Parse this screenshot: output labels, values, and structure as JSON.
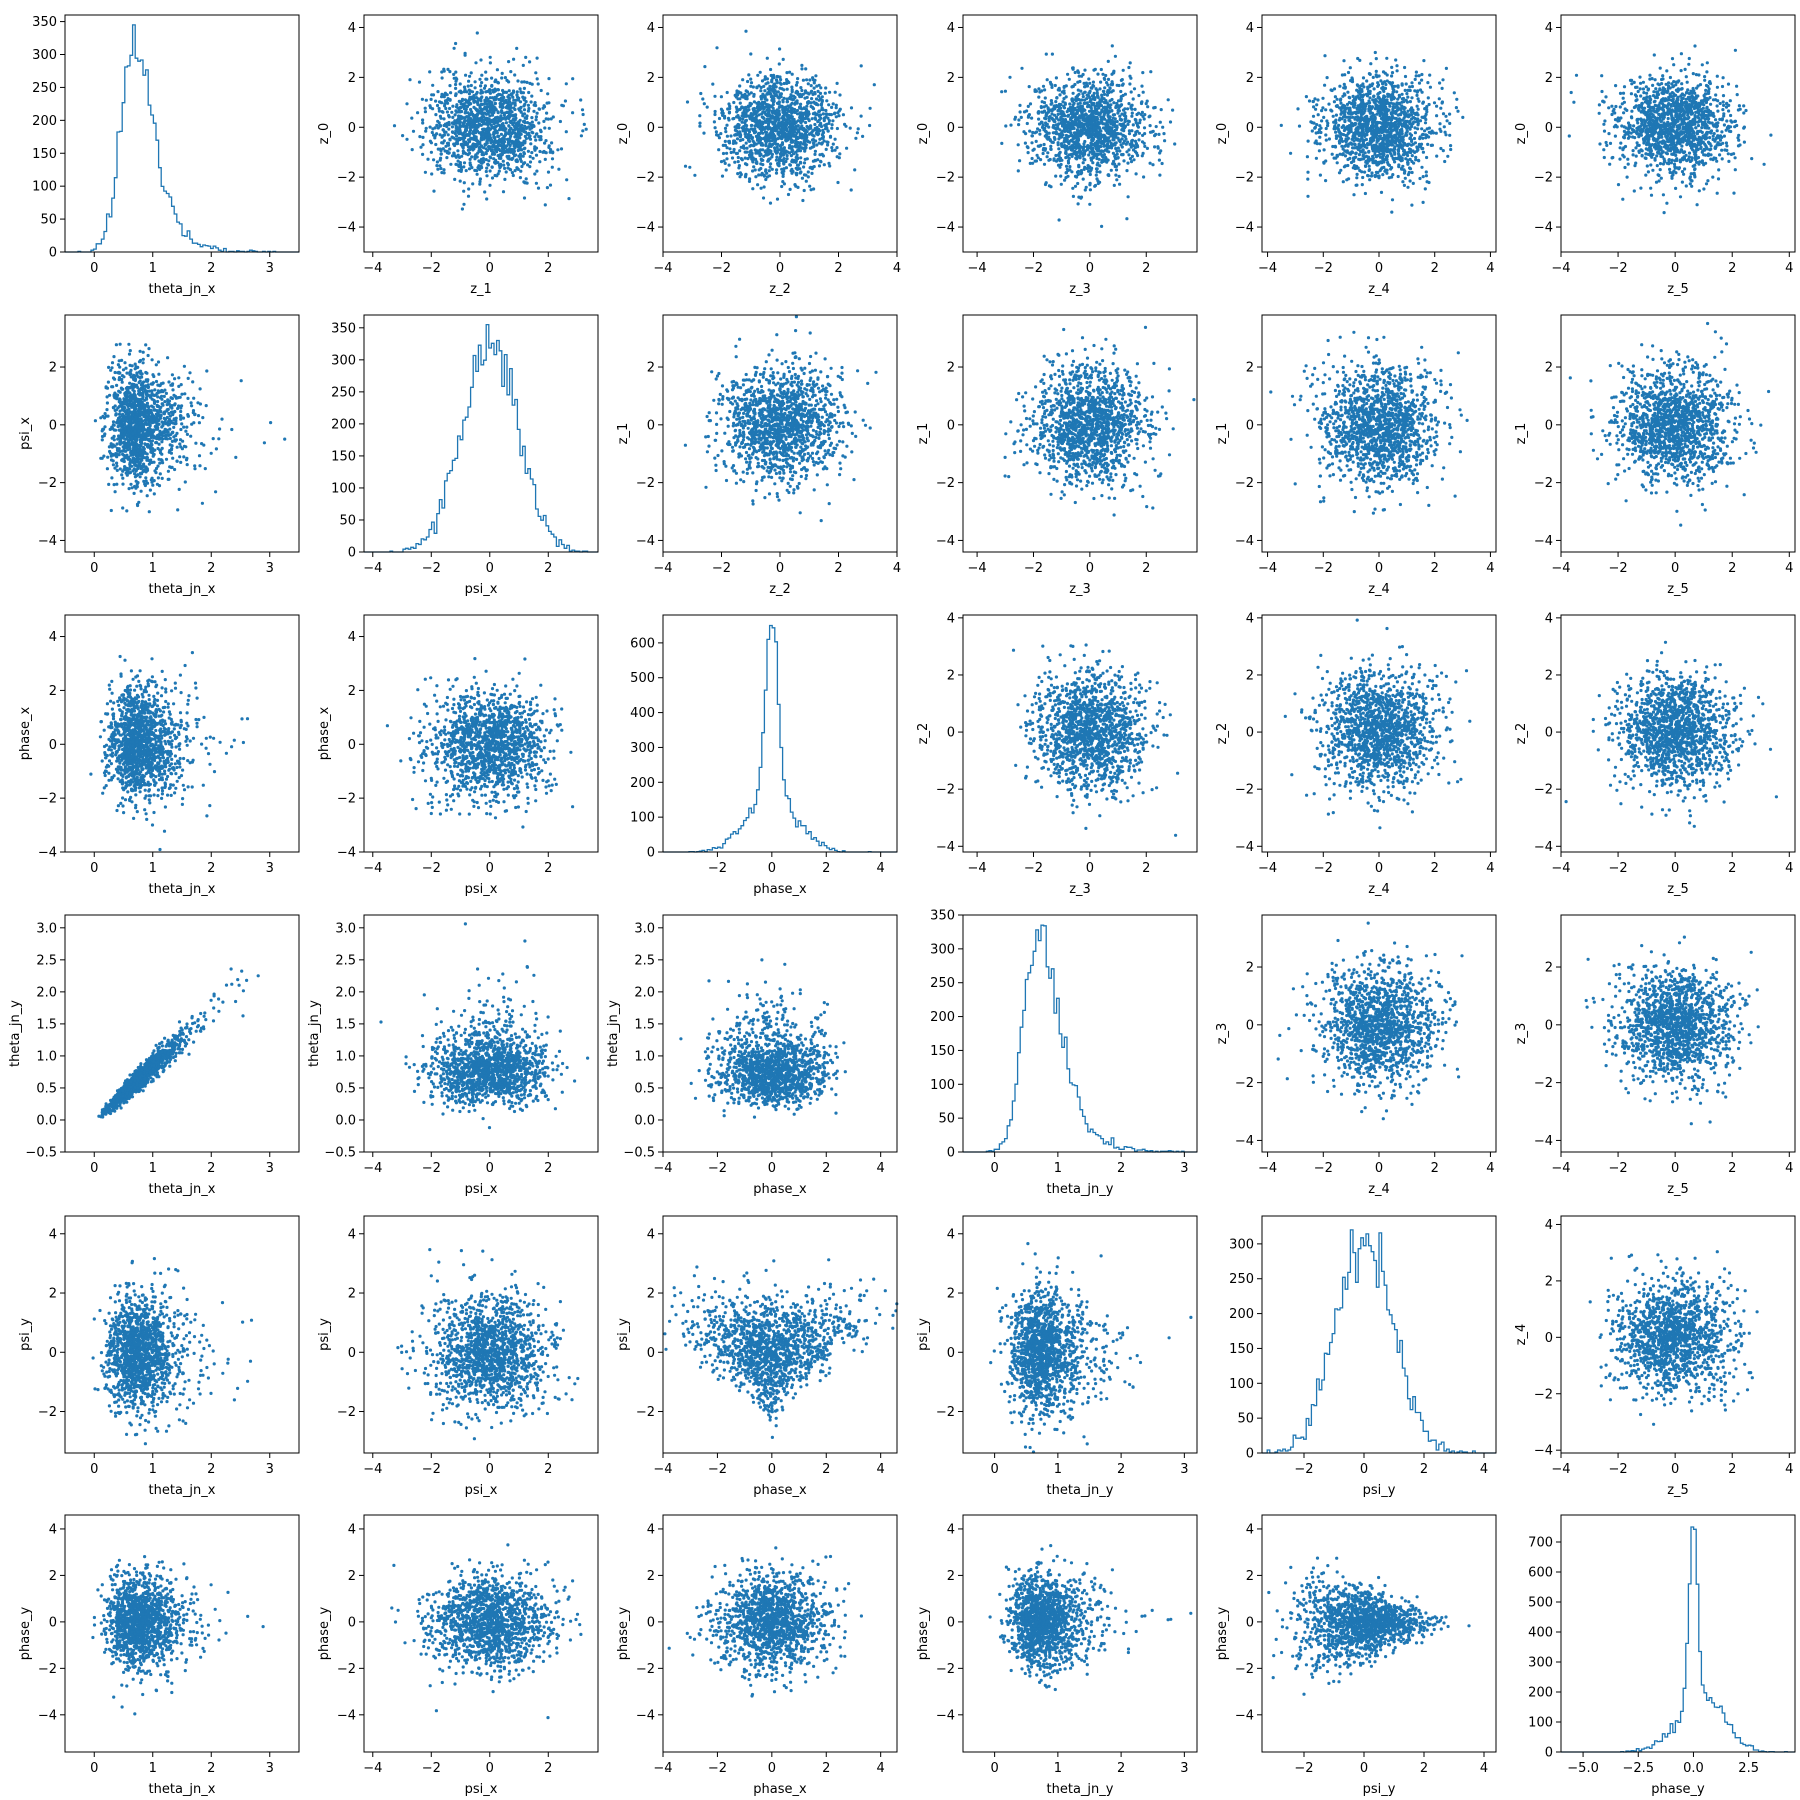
{
  "figure": {
    "accent_color": "#1f77b4",
    "layout": "corner plot, lower triangle: data samples, upper triangle: latent z samples"
  },
  "chart_data": [
    {
      "panel": "r0c0",
      "type": "histogram",
      "xlabel": "theta_jn_x",
      "ylabel": "",
      "xlim": [
        -0.5,
        3.5
      ],
      "ylim": [
        0,
        360
      ],
      "xticks": [
        0,
        1,
        2,
        3
      ],
      "yticks": [
        0,
        50,
        100,
        150,
        200,
        250,
        300,
        350
      ],
      "mode": 0.72,
      "peak": 345,
      "shape": "right-skewed"
    },
    {
      "panel": "r0c1",
      "type": "scatter",
      "xlabel": "z_1",
      "ylabel": "z_0",
      "xlim": [
        -4.3,
        3.7
      ],
      "ylim": [
        -5,
        4.5
      ],
      "xticks": [
        -4,
        -2,
        0,
        2
      ],
      "yticks": [
        -4,
        -2,
        0,
        2,
        4
      ],
      "dist": "iid normal(0,1)"
    },
    {
      "panel": "r0c2",
      "type": "scatter",
      "xlabel": "z_2",
      "ylabel": "z_0",
      "xlim": [
        -4,
        4
      ],
      "ylim": [
        -5,
        4.5
      ],
      "xticks": [
        -4,
        -2,
        0,
        2,
        4
      ],
      "yticks": [
        -4,
        -2,
        0,
        2,
        4
      ],
      "dist": "iid normal(0,1)"
    },
    {
      "panel": "r0c3",
      "type": "scatter",
      "xlabel": "z_3",
      "ylabel": "z_0",
      "xlim": [
        -4.5,
        3.8
      ],
      "ylim": [
        -5,
        4.5
      ],
      "xticks": [
        -4,
        -2,
        0,
        2
      ],
      "yticks": [
        -4,
        -2,
        0,
        2,
        4
      ],
      "dist": "iid normal(0,1)"
    },
    {
      "panel": "r0c4",
      "type": "scatter",
      "xlabel": "z_4",
      "ylabel": "z_0",
      "xlim": [
        -4.2,
        4.2
      ],
      "ylim": [
        -5,
        4.5
      ],
      "xticks": [
        -4,
        -2,
        0,
        2,
        4
      ],
      "yticks": [
        -4,
        -2,
        0,
        2,
        4
      ],
      "dist": "iid normal(0,1)"
    },
    {
      "panel": "r0c5",
      "type": "scatter",
      "xlabel": "z_5",
      "ylabel": "z_0",
      "xlim": [
        -4,
        4.2
      ],
      "ylim": [
        -5,
        4.5
      ],
      "xticks": [
        -4,
        -2,
        0,
        2,
        4
      ],
      "yticks": [
        -4,
        -2,
        0,
        2,
        4
      ],
      "dist": "iid normal(0,1)"
    },
    {
      "panel": "r1c0",
      "type": "scatter",
      "xlabel": "theta_jn_x",
      "ylabel": "psi_x",
      "xlim": [
        -0.5,
        3.5
      ],
      "ylim": [
        -4.4,
        3.8
      ],
      "xticks": [
        0,
        1,
        2,
        3
      ],
      "yticks": [
        -4,
        -2,
        0,
        2
      ],
      "dist": "theta_jn vs normal"
    },
    {
      "panel": "r1c1",
      "type": "histogram",
      "xlabel": "psi_x",
      "ylabel": "",
      "xlim": [
        -4.3,
        3.7
      ],
      "ylim": [
        0,
        370
      ],
      "xticks": [
        -4,
        -2,
        0,
        2
      ],
      "yticks": [
        0,
        50,
        100,
        150,
        200,
        250,
        300,
        350
      ],
      "mode": 0,
      "peak": 355,
      "shape": "normal"
    },
    {
      "panel": "r1c2",
      "type": "scatter",
      "xlabel": "z_2",
      "ylabel": "z_1",
      "xlim": [
        -4,
        4
      ],
      "ylim": [
        -4.4,
        3.8
      ],
      "xticks": [
        -4,
        -2,
        0,
        2,
        4
      ],
      "yticks": [
        -4,
        -2,
        0,
        2
      ],
      "dist": "iid normal(0,1)"
    },
    {
      "panel": "r1c3",
      "type": "scatter",
      "xlabel": "z_3",
      "ylabel": "z_1",
      "xlim": [
        -4.5,
        3.8
      ],
      "ylim": [
        -4.4,
        3.8
      ],
      "xticks": [
        -4,
        -2,
        0,
        2
      ],
      "yticks": [
        -4,
        -2,
        0,
        2
      ],
      "dist": "iid normal(0,1)"
    },
    {
      "panel": "r1c4",
      "type": "scatter",
      "xlabel": "z_4",
      "ylabel": "z_1",
      "xlim": [
        -4.2,
        4.2
      ],
      "ylim": [
        -4.4,
        3.8
      ],
      "xticks": [
        -4,
        -2,
        0,
        2,
        4
      ],
      "yticks": [
        -4,
        -2,
        0,
        2
      ],
      "dist": "iid normal(0,1)"
    },
    {
      "panel": "r1c5",
      "type": "scatter",
      "xlabel": "z_5",
      "ylabel": "z_1",
      "xlim": [
        -4,
        4.2
      ],
      "ylim": [
        -4.4,
        3.8
      ],
      "xticks": [
        -4,
        -2,
        0,
        2,
        4
      ],
      "yticks": [
        -4,
        -2,
        0,
        2
      ],
      "dist": "iid normal(0,1)"
    },
    {
      "panel": "r2c0",
      "type": "scatter",
      "xlabel": "theta_jn_x",
      "ylabel": "phase_x",
      "xlim": [
        -0.5,
        3.5
      ],
      "ylim": [
        -4,
        4.8
      ],
      "xticks": [
        0,
        1,
        2,
        3
      ],
      "yticks": [
        -4,
        -2,
        0,
        2,
        4
      ],
      "dist": "theta_jn vs normal"
    },
    {
      "panel": "r2c1",
      "type": "scatter",
      "xlabel": "psi_x",
      "ylabel": "phase_x",
      "xlim": [
        -4.3,
        3.7
      ],
      "ylim": [
        -4,
        4.8
      ],
      "xticks": [
        -4,
        -2,
        0,
        2
      ],
      "yticks": [
        -4,
        -2,
        0,
        2,
        4
      ],
      "dist": "iid normal(0,1)"
    },
    {
      "panel": "r2c2",
      "type": "histogram",
      "xlabel": "phase_x",
      "ylabel": "",
      "xlim": [
        -4,
        4.6
      ],
      "ylim": [
        0,
        680
      ],
      "xticks": [
        -2,
        0,
        2,
        4
      ],
      "yticks": [
        0,
        100,
        200,
        300,
        400,
        500,
        600
      ],
      "mode": 0,
      "peak": 650,
      "shape": "sharp-peaked"
    },
    {
      "panel": "r2c3",
      "type": "scatter",
      "xlabel": "z_3",
      "ylabel": "z_2",
      "xlim": [
        -4.5,
        3.8
      ],
      "ylim": [
        -4.2,
        4.1
      ],
      "xticks": [
        -4,
        -2,
        0,
        2
      ],
      "yticks": [
        -4,
        -2,
        0,
        2,
        4
      ],
      "dist": "iid normal(0,1)"
    },
    {
      "panel": "r2c4",
      "type": "scatter",
      "xlabel": "z_4",
      "ylabel": "z_2",
      "xlim": [
        -4.2,
        4.2
      ],
      "ylim": [
        -4.2,
        4.1
      ],
      "xticks": [
        -4,
        -2,
        0,
        2,
        4
      ],
      "yticks": [
        -4,
        -2,
        0,
        2,
        4
      ],
      "dist": "iid normal(0,1)"
    },
    {
      "panel": "r2c5",
      "type": "scatter",
      "xlabel": "z_5",
      "ylabel": "z_2",
      "xlim": [
        -4,
        4.2
      ],
      "ylim": [
        -4.2,
        4.1
      ],
      "xticks": [
        -4,
        -2,
        0,
        2,
        4
      ],
      "yticks": [
        -4,
        -2,
        0,
        2,
        4
      ],
      "dist": "iid normal(0,1)"
    },
    {
      "panel": "r3c0",
      "type": "scatter",
      "xlabel": "theta_jn_x",
      "ylabel": "theta_jn_y",
      "xlim": [
        -0.5,
        3.5
      ],
      "ylim": [
        -0.5,
        3.2
      ],
      "xticks": [
        0,
        1,
        2,
        3
      ],
      "yticks": [
        -0.5,
        0.0,
        0.5,
        1.0,
        1.5,
        2.0,
        2.5,
        3.0
      ],
      "ytickfmt": 1,
      "dist": "theta_jn correlated"
    },
    {
      "panel": "r3c1",
      "type": "scatter",
      "xlabel": "psi_x",
      "ylabel": "theta_jn_y",
      "xlim": [
        -4.3,
        3.7
      ],
      "ylim": [
        -0.5,
        3.2
      ],
      "xticks": [
        -4,
        -2,
        0,
        2
      ],
      "yticks": [
        -0.5,
        0.0,
        0.5,
        1.0,
        1.5,
        2.0,
        2.5,
        3.0
      ],
      "ytickfmt": 1,
      "dist": "normal vs theta_jn"
    },
    {
      "panel": "r3c2",
      "type": "scatter",
      "xlabel": "phase_x",
      "ylabel": "theta_jn_y",
      "xlim": [
        -4,
        4.6
      ],
      "ylim": [
        -0.5,
        3.2
      ],
      "xticks": [
        -4,
        -2,
        0,
        2,
        4
      ],
      "yticks": [
        -0.5,
        0.0,
        0.5,
        1.0,
        1.5,
        2.0,
        2.5,
        3.0
      ],
      "ytickfmt": 1,
      "dist": "normal vs theta_jn"
    },
    {
      "panel": "r3c3",
      "type": "histogram",
      "xlabel": "theta_jn_y",
      "ylabel": "",
      "xlim": [
        -0.5,
        3.2
      ],
      "ylim": [
        0,
        350
      ],
      "xticks": [
        0,
        1,
        2,
        3
      ],
      "yticks": [
        0,
        50,
        100,
        150,
        200,
        250,
        300,
        350
      ],
      "mode": 0.6,
      "peak": 335,
      "shape": "right-skewed"
    },
    {
      "panel": "r3c4",
      "type": "scatter",
      "xlabel": "z_4",
      "ylabel": "z_3",
      "xlim": [
        -4.2,
        4.2
      ],
      "ylim": [
        -4.4,
        3.8
      ],
      "xticks": [
        -4,
        -2,
        0,
        2,
        4
      ],
      "yticks": [
        -4,
        -2,
        0,
        2
      ],
      "dist": "iid normal(0,1)"
    },
    {
      "panel": "r3c5",
      "type": "scatter",
      "xlabel": "z_5",
      "ylabel": "z_3",
      "xlim": [
        -4,
        4.2
      ],
      "ylim": [
        -4.4,
        3.8
      ],
      "xticks": [
        -4,
        -2,
        0,
        2,
        4
      ],
      "yticks": [
        -4,
        -2,
        0,
        2
      ],
      "dist": "iid normal(0,1)"
    },
    {
      "panel": "r4c0",
      "type": "scatter",
      "xlabel": "theta_jn_x",
      "ylabel": "psi_y",
      "xlim": [
        -0.5,
        3.5
      ],
      "ylim": [
        -3.4,
        4.6
      ],
      "xticks": [
        0,
        1,
        2,
        3
      ],
      "yticks": [
        -2,
        0,
        2,
        4
      ],
      "dist": "theta_jn vs normal"
    },
    {
      "panel": "r4c1",
      "type": "scatter",
      "xlabel": "psi_x",
      "ylabel": "psi_y",
      "xlim": [
        -4.3,
        3.7
      ],
      "ylim": [
        -3.4,
        4.6
      ],
      "xticks": [
        -4,
        -2,
        0,
        2
      ],
      "yticks": [
        -2,
        0,
        2,
        4
      ],
      "dist": "iid normal(0,1)"
    },
    {
      "panel": "r4c2",
      "type": "scatter",
      "xlabel": "phase_x",
      "ylabel": "psi_y",
      "xlim": [
        -4,
        4.6
      ],
      "ylim": [
        -3.4,
        4.6
      ],
      "xticks": [
        -4,
        -2,
        0,
        2,
        4
      ],
      "yticks": [
        -2,
        0,
        2,
        4
      ],
      "dist": "inverted funnel"
    },
    {
      "panel": "r4c3",
      "type": "scatter",
      "xlabel": "theta_jn_y",
      "ylabel": "psi_y",
      "xlim": [
        -0.5,
        3.2
      ],
      "ylim": [
        -3.4,
        4.6
      ],
      "xticks": [
        0,
        1,
        2,
        3
      ],
      "yticks": [
        -2,
        0,
        2,
        4
      ],
      "dist": "theta_jn vs normal"
    },
    {
      "panel": "r4c4",
      "type": "histogram",
      "xlabel": "psi_y",
      "ylabel": "",
      "xlim": [
        -3.4,
        4.4
      ],
      "ylim": [
        0,
        340
      ],
      "xticks": [
        -2,
        0,
        2,
        4
      ],
      "yticks": [
        0,
        50,
        100,
        150,
        200,
        250,
        300
      ],
      "mode": 0,
      "peak": 320,
      "shape": "normal"
    },
    {
      "panel": "r4c5",
      "type": "scatter",
      "xlabel": "z_5",
      "ylabel": "z_4",
      "xlim": [
        -4,
        4.2
      ],
      "ylim": [
        -4.1,
        4.3
      ],
      "xticks": [
        -4,
        -2,
        0,
        2,
        4
      ],
      "yticks": [
        -4,
        -2,
        0,
        2,
        4
      ],
      "dist": "iid normal(0,1)"
    },
    {
      "panel": "r5c0",
      "type": "scatter",
      "xlabel": "theta_jn_x",
      "ylabel": "phase_y",
      "xlim": [
        -0.5,
        3.5
      ],
      "ylim": [
        -5.6,
        4.6
      ],
      "xticks": [
        0,
        1,
        2,
        3
      ],
      "yticks": [
        -4,
        -2,
        0,
        2,
        4
      ],
      "dist": "theta_jn vs normal"
    },
    {
      "panel": "r5c1",
      "type": "scatter",
      "xlabel": "psi_x",
      "ylabel": "phase_y",
      "xlim": [
        -4.3,
        3.7
      ],
      "ylim": [
        -5.6,
        4.6
      ],
      "xticks": [
        -4,
        -2,
        0,
        2
      ],
      "yticks": [
        -4,
        -2,
        0,
        2,
        4
      ],
      "dist": "iid normal(0,1)"
    },
    {
      "panel": "r5c2",
      "type": "scatter",
      "xlabel": "phase_x",
      "ylabel": "phase_y",
      "xlim": [
        -4,
        4.6
      ],
      "ylim": [
        -5.6,
        4.6
      ],
      "xticks": [
        -4,
        -2,
        0,
        2,
        4
      ],
      "yticks": [
        -4,
        -2,
        0,
        2,
        4
      ],
      "dist": "iid normal(0,1)"
    },
    {
      "panel": "r5c3",
      "type": "scatter",
      "xlabel": "theta_jn_y",
      "ylabel": "phase_y",
      "xlim": [
        -0.5,
        3.2
      ],
      "ylim": [
        -5.6,
        4.6
      ],
      "xticks": [
        0,
        1,
        2,
        3
      ],
      "yticks": [
        -4,
        -2,
        0,
        2,
        4
      ],
      "dist": "theta_jn vs normal"
    },
    {
      "panel": "r5c4",
      "type": "scatter",
      "xlabel": "psi_y",
      "ylabel": "phase_y",
      "xlim": [
        -3.4,
        4.4
      ],
      "ylim": [
        -5.6,
        4.6
      ],
      "xticks": [
        -2,
        0,
        2,
        4
      ],
      "yticks": [
        -4,
        -2,
        0,
        2,
        4
      ],
      "dist": "funnel right"
    },
    {
      "panel": "r5c5",
      "type": "histogram",
      "xlabel": "phase_y",
      "ylabel": "",
      "xlim": [
        -6,
        4.6
      ],
      "ylim": [
        0,
        790
      ],
      "xticks": [
        -5.0,
        -2.5,
        0.0,
        2.5
      ],
      "xtickfmt": 1,
      "yticks": [
        0,
        100,
        200,
        300,
        400,
        500,
        600,
        700
      ],
      "mode": 0,
      "peak": 750,
      "shape": "sharp-peaked with right shoulder"
    }
  ]
}
